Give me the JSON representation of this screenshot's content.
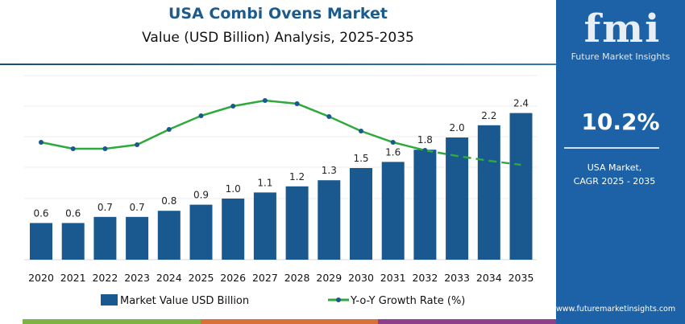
{
  "header": {
    "title": "USA Combi Ovens Market",
    "subtitle": "Value (USD Billion) Analysis, 2025-2035"
  },
  "sidebar": {
    "logo_text": "fmi",
    "brand": "Future Market Insights",
    "cagr_value": "10.2%",
    "cagr_label_1": "USA Market,",
    "cagr_label_2": "CAGR 2025 - 2035",
    "url": "www.futuremarketinsights.com"
  },
  "colors": {
    "bar": "#1a5890",
    "line": "#2eaa3c",
    "marker": "#1a5890",
    "sidebar": "#1d62a6",
    "title": "#1d5b8c"
  },
  "chart_data": {
    "type": "bar",
    "categories": [
      "2020",
      "2021",
      "2022",
      "2023",
      "2024",
      "2025",
      "2026",
      "2027",
      "2028",
      "2029",
      "2030",
      "2031",
      "2032",
      "2033",
      "2034",
      "2035"
    ],
    "series": [
      {
        "name": "Market Value USD Billion",
        "type": "bar",
        "values": [
          0.6,
          0.6,
          0.7,
          0.7,
          0.8,
          0.9,
          1.0,
          1.1,
          1.2,
          1.3,
          1.5,
          1.6,
          1.8,
          2.0,
          2.2,
          2.4
        ],
        "labels": [
          "0.6",
          "0.6",
          "0.7",
          "0.7",
          "0.8",
          "0.9",
          "1.0",
          "1.1",
          "1.2",
          "1.3",
          "1.5",
          "1.6",
          "1.8",
          "2.0",
          "2.2",
          "2.4"
        ]
      },
      {
        "name": "Y-o-Y Growth Rate (%)",
        "type": "line",
        "values": [
          9.4,
          9.0,
          9.0,
          9.25,
          10.2,
          11.05,
          11.65,
          12.0,
          11.8,
          11.0,
          10.1,
          9.4,
          8.9,
          8.55,
          8.25,
          8.0
        ],
        "dashed_from": "2032"
      }
    ],
    "ylim": [
      0,
      2.4
    ],
    "grid": true,
    "legend": "bottom"
  }
}
